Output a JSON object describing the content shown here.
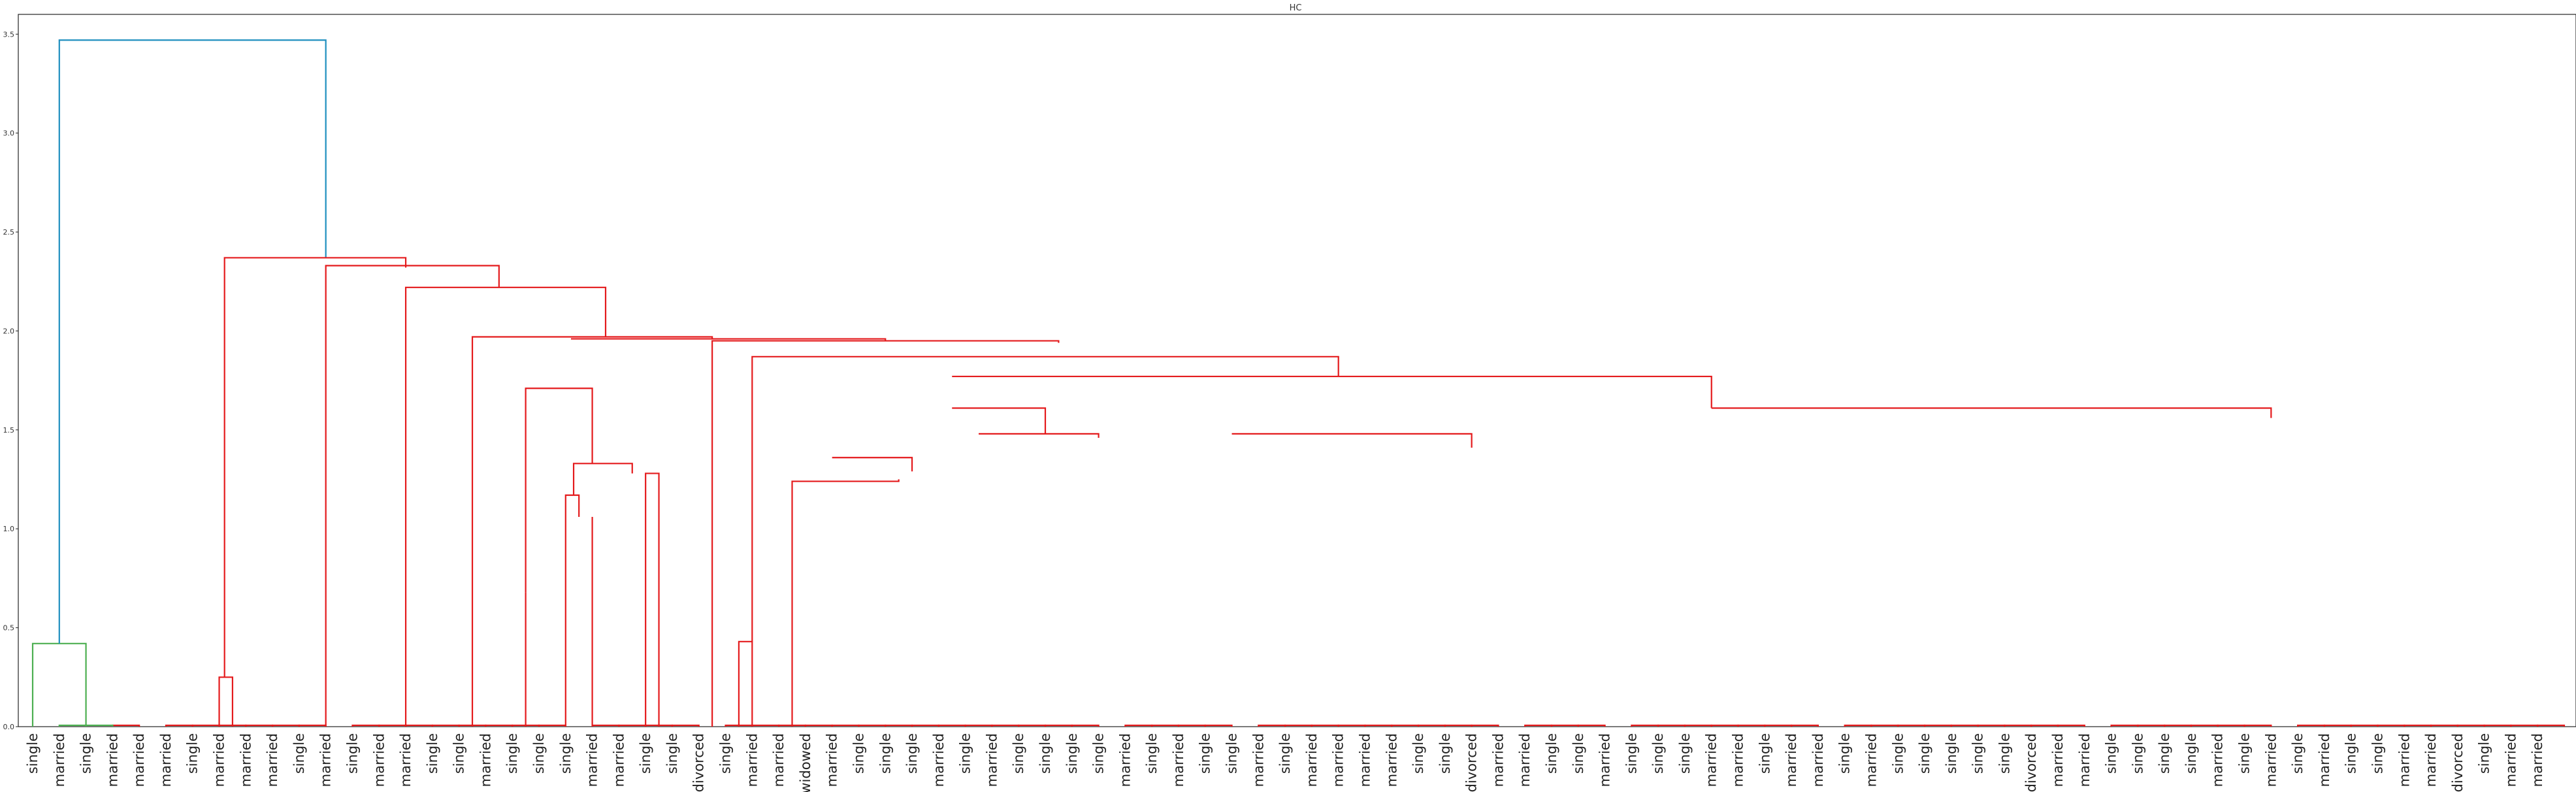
{
  "chart_data": {
    "type": "dendrogram",
    "title": "HC",
    "xlabel": "",
    "ylabel": "",
    "ylim": [
      0,
      3.6
    ],
    "yticks": [
      "0.0",
      "0.5",
      "1.0",
      "1.5",
      "2.0",
      "2.5",
      "3.0",
      "3.5"
    ],
    "grid": false,
    "legend": "none",
    "colors": {
      "root": "#1f8fbf",
      "cluster_a": "#4caf50",
      "cluster_b": "#e41a1c"
    },
    "leaves": [
      "single",
      "married",
      "single",
      "married",
      "married",
      "married",
      "single",
      "married",
      "married",
      "married",
      "single",
      "married",
      "single",
      "married",
      "married",
      "single",
      "single",
      "married",
      "single",
      "single",
      "single",
      "married",
      "married",
      "single",
      "single",
      "divorced",
      "single",
      "married",
      "married",
      "widowed",
      "married",
      "single",
      "single",
      "single",
      "married",
      "single",
      "married",
      "single",
      "single",
      "single",
      "single",
      "married",
      "single",
      "married",
      "single",
      "single",
      "married",
      "single",
      "married",
      "married",
      "married",
      "married",
      "single",
      "single",
      "divorced",
      "married",
      "married",
      "single",
      "single",
      "married",
      "single",
      "single",
      "single",
      "married",
      "married",
      "single",
      "married",
      "married",
      "single",
      "married",
      "single",
      "single",
      "single",
      "single",
      "single",
      "divorced",
      "married",
      "married",
      "single",
      "single",
      "single",
      "single",
      "married",
      "single",
      "married",
      "single",
      "married",
      "single",
      "single",
      "married",
      "married",
      "divorced",
      "single",
      "married",
      "married"
    ],
    "merges": [
      [
        0,
        2,
        0.42,
        "cluster_a"
      ],
      [
        5,
        6,
        0.0,
        "cluster_b"
      ],
      [
        6,
        7,
        0.0,
        "cluster_b"
      ],
      [
        7,
        8,
        0.0,
        "cluster_b"
      ],
      [
        8,
        9,
        0.0,
        "cluster_b"
      ],
      [
        9,
        10,
        0.0,
        "cluster_b"
      ],
      [
        10,
        11,
        0.0,
        "cluster_b"
      ],
      [
        12,
        13,
        0.0,
        "cluster_b"
      ],
      [
        13,
        14,
        0.0,
        "cluster_b"
      ],
      [
        14,
        15,
        0.0,
        "cluster_b"
      ],
      [
        15,
        16,
        0.0,
        "cluster_b"
      ],
      [
        16,
        17,
        0.0,
        "cluster_b"
      ],
      [
        17,
        18,
        0.0,
        "cluster_b"
      ],
      [
        18,
        19,
        0.0,
        "cluster_b"
      ],
      [
        19,
        20,
        0.0,
        "cluster_b"
      ],
      [
        21,
        22,
        0.0,
        "cluster_b"
      ],
      [
        22,
        23,
        0.0,
        "cluster_b"
      ],
      [
        23,
        24,
        0.0,
        "cluster_b"
      ],
      [
        24,
        25,
        0.0,
        "cluster_b"
      ],
      [
        26,
        27,
        0.0,
        "cluster_b"
      ],
      [
        27,
        28,
        0.0,
        "cluster_b"
      ],
      [
        28,
        29,
        0.0,
        "cluster_b"
      ],
      [
        29,
        30,
        0.0,
        "cluster_b"
      ],
      [
        30,
        31,
        0.0,
        "cluster_b"
      ],
      [
        31,
        32,
        0.0,
        "cluster_b"
      ],
      [
        32,
        33,
        0.0,
        "cluster_b"
      ],
      [
        33,
        34,
        0.0,
        "cluster_b"
      ],
      [
        34,
        35,
        0.0,
        "cluster_b"
      ],
      [
        35,
        36,
        0.0,
        "cluster_b"
      ],
      [
        36,
        37,
        0.0,
        "cluster_b"
      ],
      [
        37,
        38,
        0.0,
        "cluster_b"
      ],
      [
        38,
        39,
        0.0,
        "cluster_b"
      ],
      [
        39,
        40,
        0.0,
        "cluster_b"
      ],
      [
        41,
        42,
        0.0,
        "cluster_b"
      ],
      [
        42,
        43,
        0.0,
        "cluster_b"
      ],
      [
        43,
        44,
        0.0,
        "cluster_b"
      ],
      [
        44,
        45,
        0.0,
        "cluster_b"
      ],
      [
        46,
        47,
        0.0,
        "cluster_b"
      ],
      [
        47,
        48,
        0.0,
        "cluster_b"
      ],
      [
        48,
        49,
        0.0,
        "cluster_b"
      ],
      [
        49,
        50,
        0.0,
        "cluster_b"
      ],
      [
        50,
        51,
        0.0,
        "cluster_b"
      ],
      [
        51,
        52,
        0.0,
        "cluster_b"
      ],
      [
        52,
        53,
        0.0,
        "cluster_b"
      ],
      [
        53,
        54,
        0.0,
        "cluster_b"
      ],
      [
        54,
        55,
        0.0,
        "cluster_b"
      ],
      [
        56,
        57,
        0.0,
        "cluster_b"
      ],
      [
        57,
        58,
        0.0,
        "cluster_b"
      ],
      [
        58,
        59,
        0.0,
        "cluster_b"
      ],
      [
        60,
        61,
        0.0,
        "cluster_b"
      ],
      [
        61,
        62,
        0.0,
        "cluster_b"
      ],
      [
        62,
        63,
        0.0,
        "cluster_b"
      ],
      [
        63,
        64,
        0.0,
        "cluster_b"
      ],
      [
        64,
        65,
        0.0,
        "cluster_b"
      ],
      [
        65,
        66,
        0.0,
        "cluster_b"
      ],
      [
        66,
        67,
        0.0,
        "cluster_b"
      ],
      [
        68,
        69,
        0.0,
        "cluster_b"
      ],
      [
        69,
        70,
        0.0,
        "cluster_b"
      ],
      [
        70,
        71,
        0.0,
        "cluster_b"
      ],
      [
        71,
        72,
        0.0,
        "cluster_b"
      ],
      [
        72,
        73,
        0.0,
        "cluster_b"
      ],
      [
        73,
        74,
        0.0,
        "cluster_b"
      ],
      [
        74,
        75,
        0.0,
        "cluster_b"
      ],
      [
        75,
        76,
        0.0,
        "cluster_b"
      ],
      [
        76,
        77,
        0.0,
        "cluster_b"
      ],
      [
        78,
        79,
        0.0,
        "cluster_b"
      ],
      [
        79,
        80,
        0.0,
        "cluster_b"
      ],
      [
        80,
        81,
        0.0,
        "cluster_b"
      ],
      [
        81,
        82,
        0.0,
        "cluster_b"
      ],
      [
        82,
        83,
        0.0,
        "cluster_b"
      ],
      [
        83,
        84,
        0.0,
        "cluster_b"
      ],
      [
        85,
        86,
        0.0,
        "cluster_b"
      ],
      [
        86,
        87,
        0.0,
        "cluster_b"
      ],
      [
        87,
        88,
        0.0,
        "cluster_b"
      ],
      [
        88,
        89,
        0.0,
        "cluster_b"
      ],
      [
        89,
        90,
        0.0,
        "cluster_b"
      ],
      [
        90,
        91,
        0.0,
        "cluster_b"
      ],
      [
        91,
        92,
        0.0,
        "cluster_b"
      ],
      [
        92,
        93,
        0.0,
        "cluster_b"
      ],
      [
        93,
        94,
        0.0,
        "cluster_b"
      ],
      [
        94,
        95,
        0.0,
        "cluster_b"
      ],
      [
        3,
        4,
        0.0,
        "cluster_b"
      ],
      [
        1,
        3,
        0.0,
        "cluster_a"
      ]
    ],
    "links": [
      {
        "x": [
          1,
          1,
          3,
          3
        ],
        "y": [
          0,
          0.42,
          0.42,
          0
        ],
        "color": "cluster_a"
      },
      {
        "x": [
          2,
          2,
          12,
          12
        ],
        "y": [
          0.42,
          3.47,
          3.47,
          2.37
        ],
        "color": "root"
      },
      {
        "x": [
          8,
          8,
          8.5,
          8.5
        ],
        "y": [
          0,
          0.25,
          0.25,
          0
        ],
        "color": "cluster_b"
      },
      {
        "x": [
          8.2,
          8.2,
          15,
          15
        ],
        "y": [
          0.25,
          2.37,
          2.37,
          2.32
        ],
        "color": "cluster_b"
      },
      {
        "x": [
          12,
          12,
          18.5,
          18.5
        ],
        "y": [
          0,
          2.33,
          2.33,
          2.22
        ],
        "color": "cluster_b"
      },
      {
        "x": [
          15,
          15,
          22.5,
          22.5
        ],
        "y": [
          0,
          2.22,
          2.22,
          1.97
        ],
        "color": "cluster_b"
      },
      {
        "x": [
          17.5,
          17.5,
          26.5,
          26.5
        ],
        "y": [
          0,
          1.97,
          1.97,
          1.96
        ],
        "color": "cluster_b"
      },
      {
        "x": [
          19.5,
          19.5,
          19.5,
          19.5
        ],
        "y": [
          0,
          0.68,
          0.68,
          0
        ],
        "color": "cluster_b"
      },
      {
        "x": [
          19.5,
          19.5,
          22,
          22
        ],
        "y": [
          0.68,
          1.71,
          1.71,
          1.33
        ],
        "color": "cluster_b"
      },
      {
        "x": [
          21,
          21,
          21.5,
          21.5
        ],
        "y": [
          0,
          1.17,
          1.17,
          1.06
        ],
        "color": "cluster_b"
      },
      {
        "x": [
          22,
          22,
          22,
          22
        ],
        "y": [
          0,
          1.06,
          1.06,
          0
        ],
        "color": "cluster_b"
      },
      {
        "x": [
          21.3,
          21.3,
          23.5,
          23.5
        ],
        "y": [
          1.17,
          1.33,
          1.33,
          1.28
        ],
        "color": "cluster_b"
      },
      {
        "x": [
          24,
          24,
          24.5,
          24.5
        ],
        "y": [
          0,
          1.28,
          1.28,
          0
        ],
        "color": "cluster_b"
      },
      {
        "x": [
          21.2,
          21.2,
          33,
          33
        ],
        "y": [
          1.96,
          1.96,
          1.96,
          1.95
        ],
        "color": "cluster_b"
      },
      {
        "x": [
          26.5,
          26.5,
          39.5,
          39.5
        ],
        "y": [
          0,
          1.95,
          1.95,
          1.94
        ],
        "color": "cluster_b"
      },
      {
        "x": [
          27.5,
          27.5,
          28,
          28
        ],
        "y": [
          0,
          0.43,
          0.43,
          0
        ],
        "color": "cluster_b"
      },
      {
        "x": [
          28,
          28,
          50,
          50
        ],
        "y": [
          0.43,
          1.87,
          1.87,
          1.77
        ],
        "color": "cluster_b"
      },
      {
        "x": [
          35.5,
          35.5,
          64,
          64
        ],
        "y": [
          1.77,
          1.77,
          1.77,
          1.61
        ],
        "color": "cluster_b"
      },
      {
        "x": [
          35.5,
          35.5,
          39,
          39
        ],
        "y": [
          1.61,
          1.61,
          1.61,
          1.48
        ],
        "color": "cluster_b"
      },
      {
        "x": [
          31,
          31,
          34,
          34
        ],
        "y": [
          1.36,
          1.36,
          1.36,
          1.29
        ],
        "color": "cluster_b"
      },
      {
        "x": [
          29.5,
          29.5,
          33.5,
          33.5
        ],
        "y": [
          0,
          1.24,
          1.24,
          1.25
        ],
        "color": "cluster_b"
      },
      {
        "x": [
          36.5,
          36.5,
          41,
          41
        ],
        "y": [
          1.48,
          1.48,
          1.48,
          1.46
        ],
        "color": "cluster_b"
      },
      {
        "x": [
          46,
          46,
          55,
          55
        ],
        "y": [
          1.48,
          1.48,
          1.48,
          1.41
        ],
        "color": "cluster_b"
      },
      {
        "x": [
          64,
          64,
          85,
          85
        ],
        "y": [
          1.61,
          1.61,
          1.61,
          1.56
        ],
        "color": "cluster_b"
      }
    ]
  }
}
